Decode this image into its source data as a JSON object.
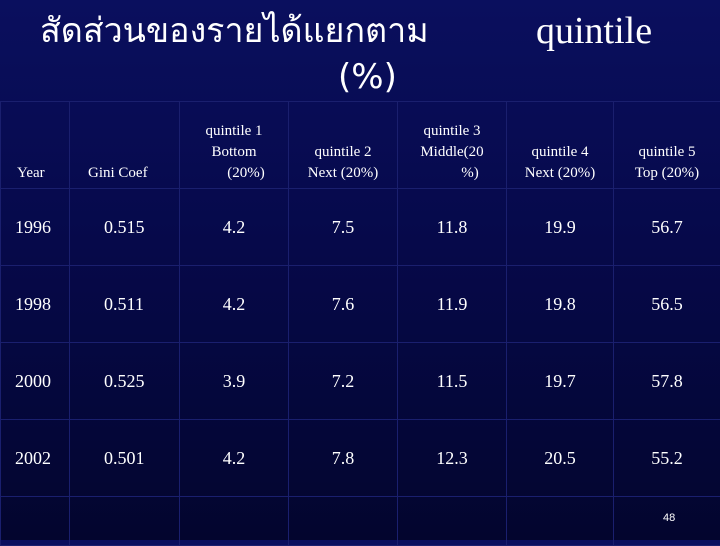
{
  "title": {
    "thai": "สัดส่วนของรายได้แยกตาม",
    "quintile": "quintile",
    "percent": "(%)"
  },
  "table": {
    "headers": [
      [
        "Year"
      ],
      [
        "Gini Coef"
      ],
      [
        "quintile 1",
        "Bottom",
        "(20%)"
      ],
      [
        "quintile 2",
        "Next (20%)"
      ],
      [
        "quintile 3",
        "Middle(20",
        "%)"
      ],
      [
        "quintile 4",
        "Next (20%)"
      ],
      [
        "quintile 5",
        "Top (20%)"
      ]
    ],
    "rows": [
      [
        "1996",
        "0.515",
        "4.2",
        "7.5",
        "11.8",
        "19.9",
        "56.7"
      ],
      [
        "1998",
        "0.511",
        "4.2",
        "7.6",
        "11.9",
        "19.8",
        "56.5"
      ],
      [
        "2000",
        "0.525",
        "3.9",
        "7.2",
        "11.5",
        "19.7",
        "57.8"
      ],
      [
        "2002",
        "0.501",
        "4.2",
        "7.8",
        "12.3",
        "20.5",
        "55.2"
      ]
    ]
  },
  "page_number": "48"
}
